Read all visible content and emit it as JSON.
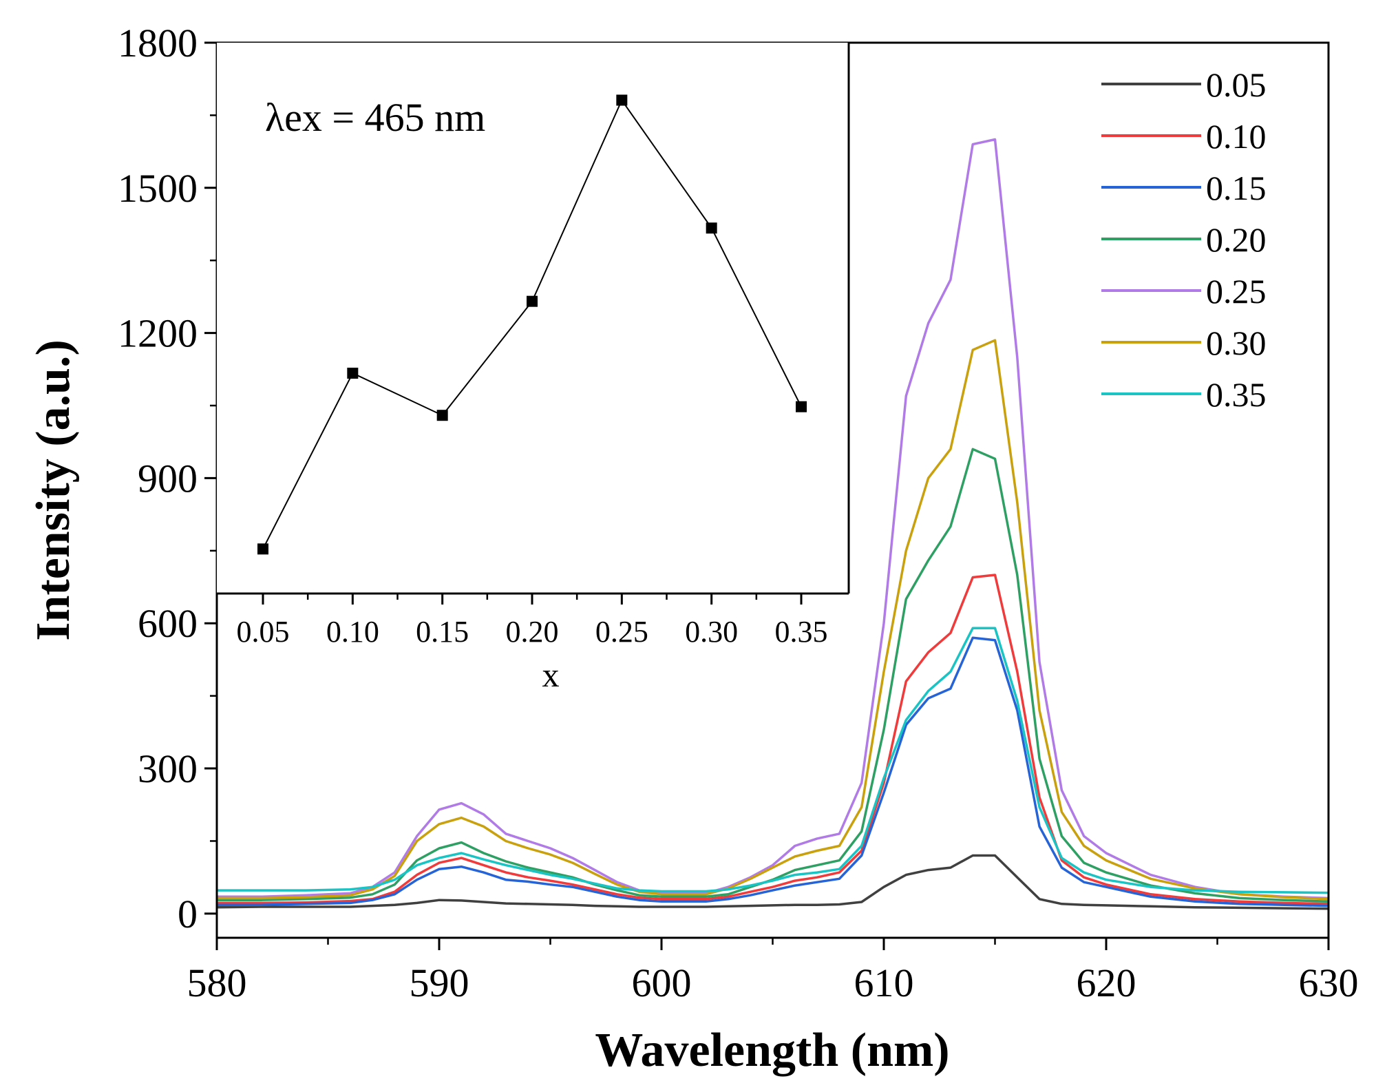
{
  "chart_data": [
    {
      "type": "line",
      "title": "",
      "xlabel": "Wavelength (nm)",
      "ylabel": "Intensity (a.u.)",
      "xlim": [
        580,
        630
      ],
      "ylim": [
        -50,
        1800
      ],
      "xticks": [
        "580",
        "590",
        "600",
        "610",
        "620",
        "630"
      ],
      "yticks": [
        "0",
        "300",
        "600",
        "900",
        "1200",
        "1500",
        "1800"
      ],
      "legend_position": "top-right",
      "x": [
        580,
        582,
        584,
        586,
        587,
        588,
        589,
        590,
        591,
        592,
        593,
        594,
        595,
        596,
        597,
        598,
        599,
        600,
        602,
        603,
        604,
        605,
        606,
        607,
        608,
        609,
        610,
        611,
        612,
        613,
        614,
        615,
        616,
        617,
        618,
        619,
        620,
        622,
        624,
        626,
        628,
        630
      ],
      "series": [
        {
          "name": "0.05",
          "color": "#404040",
          "values": [
            13,
            14,
            14,
            14,
            16,
            18,
            22,
            28,
            27,
            24,
            21,
            20,
            19,
            18,
            16,
            15,
            14,
            14,
            14,
            15,
            16,
            17,
            18,
            18,
            19,
            24,
            55,
            80,
            90,
            95,
            120,
            120,
            75,
            30,
            20,
            18,
            17,
            15,
            13,
            12,
            11,
            10
          ]
        },
        {
          "name": "0.10",
          "color": "#ef3b3b",
          "values": [
            22,
            22,
            23,
            26,
            30,
            45,
            80,
            105,
            115,
            100,
            85,
            75,
            68,
            60,
            50,
            40,
            33,
            30,
            30,
            35,
            45,
            55,
            68,
            75,
            85,
            130,
            270,
            480,
            540,
            580,
            695,
            700,
            500,
            240,
            110,
            75,
            60,
            40,
            30,
            25,
            22,
            20
          ]
        },
        {
          "name": "0.15",
          "color": "#2563d6",
          "values": [
            18,
            18,
            20,
            22,
            28,
            40,
            70,
            92,
            97,
            85,
            70,
            66,
            60,
            55,
            45,
            35,
            28,
            25,
            25,
            30,
            38,
            48,
            58,
            65,
            72,
            120,
            250,
            390,
            445,
            465,
            570,
            565,
            420,
            180,
            95,
            65,
            55,
            35,
            25,
            20,
            18,
            16
          ]
        },
        {
          "name": "0.20",
          "color": "#2ea063",
          "values": [
            28,
            28,
            30,
            33,
            40,
            60,
            110,
            135,
            147,
            125,
            108,
            95,
            85,
            75,
            60,
            48,
            38,
            35,
            35,
            40,
            55,
            70,
            90,
            100,
            110,
            170,
            380,
            650,
            730,
            800,
            960,
            940,
            700,
            320,
            160,
            105,
            85,
            58,
            42,
            32,
            28,
            25
          ]
        },
        {
          "name": "0.25",
          "color": "#b07be6",
          "values": [
            35,
            35,
            38,
            42,
            55,
            85,
            160,
            215,
            228,
            205,
            165,
            150,
            135,
            115,
            90,
            65,
            48,
            42,
            42,
            55,
            75,
            100,
            140,
            155,
            165,
            270,
            600,
            1070,
            1220,
            1310,
            1590,
            1600,
            1150,
            520,
            255,
            160,
            125,
            80,
            55,
            40,
            35,
            32
          ]
        },
        {
          "name": "0.30",
          "color": "#c9a00d",
          "values": [
            32,
            32,
            34,
            38,
            50,
            78,
            150,
            185,
            198,
            180,
            150,
            135,
            122,
            105,
            82,
            60,
            45,
            40,
            40,
            52,
            72,
            95,
            118,
            130,
            140,
            220,
            500,
            750,
            900,
            960,
            1165,
            1185,
            850,
            420,
            210,
            140,
            110,
            72,
            52,
            40,
            34,
            30
          ]
        },
        {
          "name": "0.35",
          "color": "#1bc4c4",
          "values": [
            48,
            48,
            48,
            50,
            55,
            70,
            100,
            115,
            125,
            112,
            100,
            90,
            80,
            72,
            62,
            52,
            48,
            46,
            46,
            50,
            58,
            68,
            80,
            85,
            92,
            140,
            280,
            400,
            460,
            500,
            590,
            590,
            440,
            220,
            115,
            85,
            70,
            55,
            48,
            45,
            44,
            43
          ]
        }
      ]
    },
    {
      "type": "line",
      "title": "",
      "annotation": "λex = 465 nm",
      "xlabel": "x",
      "ylabel": "",
      "xlim": [
        0.03,
        0.37
      ],
      "ylim": [
        650,
        1800
      ],
      "xticks": [
        "0.05",
        "0.10",
        "0.15",
        "0.20",
        "0.25",
        "0.30",
        "0.35"
      ],
      "x": [
        0.05,
        0.1,
        0.15,
        0.2,
        0.25,
        0.3,
        0.35
      ],
      "values": [
        743,
        1110,
        1022,
        1260,
        1680,
        1413,
        1040
      ],
      "color": "#000000"
    }
  ]
}
